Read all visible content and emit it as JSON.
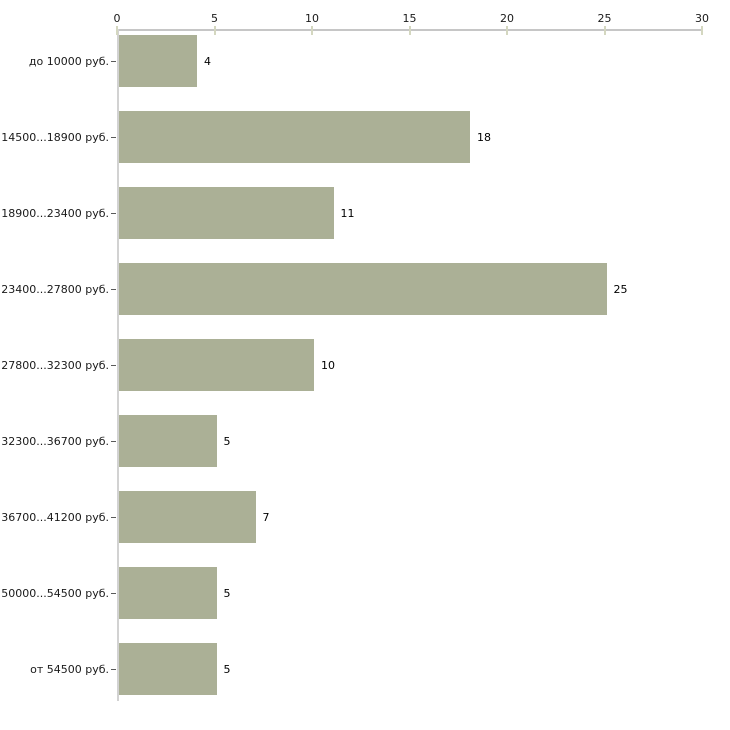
{
  "chart_data": {
    "type": "bar",
    "orientation": "horizontal",
    "title": "",
    "xlabel": "",
    "ylabel": "",
    "categories": [
      "до 10000 руб.",
      "14500...18900 руб.",
      "18900...23400 руб.",
      "23400...27800 руб.",
      "27800...32300 руб.",
      "32300...36700 руб.",
      "36700...41200 руб.",
      "50000...54500 руб.",
      "от 54500 руб."
    ],
    "values": [
      4,
      18,
      11,
      25,
      10,
      5,
      7,
      5,
      5
    ],
    "value_labels": [
      "4",
      "18",
      "11",
      "25",
      "10",
      "5",
      "7",
      "5",
      "5"
    ],
    "x_ticks": [
      0,
      5,
      10,
      15,
      20,
      25,
      30
    ],
    "xlim": [
      0,
      30
    ],
    "grid": false,
    "legend": false,
    "colors": {
      "bar_fill": "#abb096",
      "axis_line": "#c6c6c6",
      "x_tick": "#d4d7c0",
      "y_tick": "#5a5a5a",
      "text": "#1a1a1a",
      "background": "#ffffff"
    }
  }
}
